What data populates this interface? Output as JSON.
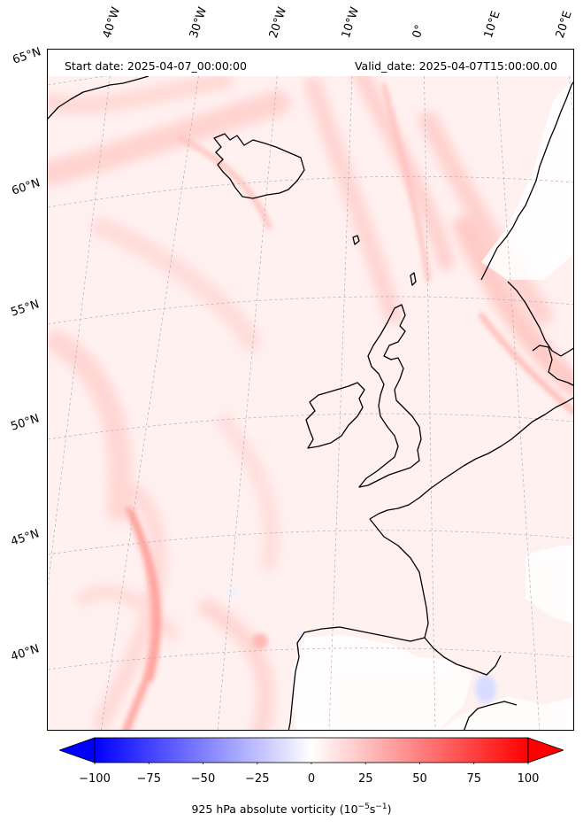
{
  "header": {
    "start_date": "Start date: 2025-04-07_00:00:00",
    "valid_date": "Valid_date: 2025-04-07T15:00:00.00"
  },
  "longitude_labels": [
    "40°W",
    "30°W",
    "20°W",
    "10°W",
    "0°",
    "10°E",
    "20°E"
  ],
  "latitude_labels": [
    "65°N",
    "60°N",
    "55°N",
    "50°N",
    "45°N",
    "40°N"
  ],
  "colorbar": {
    "ticks": [
      "−100",
      "−75",
      "−50",
      "−25",
      "0",
      "25",
      "50",
      "75",
      "100"
    ],
    "tick_values": [
      -100,
      -75,
      -50,
      -25,
      0,
      25,
      50,
      75,
      100
    ],
    "min": -100,
    "max": 100,
    "low_color": "#0000ff",
    "mid_color": "#ffffff",
    "high_color": "#ff0000",
    "label_main": "925 hPa absolute vorticity (10",
    "label_exp1": "−5",
    "label_mid": "s",
    "label_exp2": "−1",
    "label_end": ")"
  },
  "map": {
    "background_color": "#fff3f2",
    "land_color": "#ffffff",
    "coastline_color": "#000000",
    "gridline_color": "#b0b0b0"
  }
}
